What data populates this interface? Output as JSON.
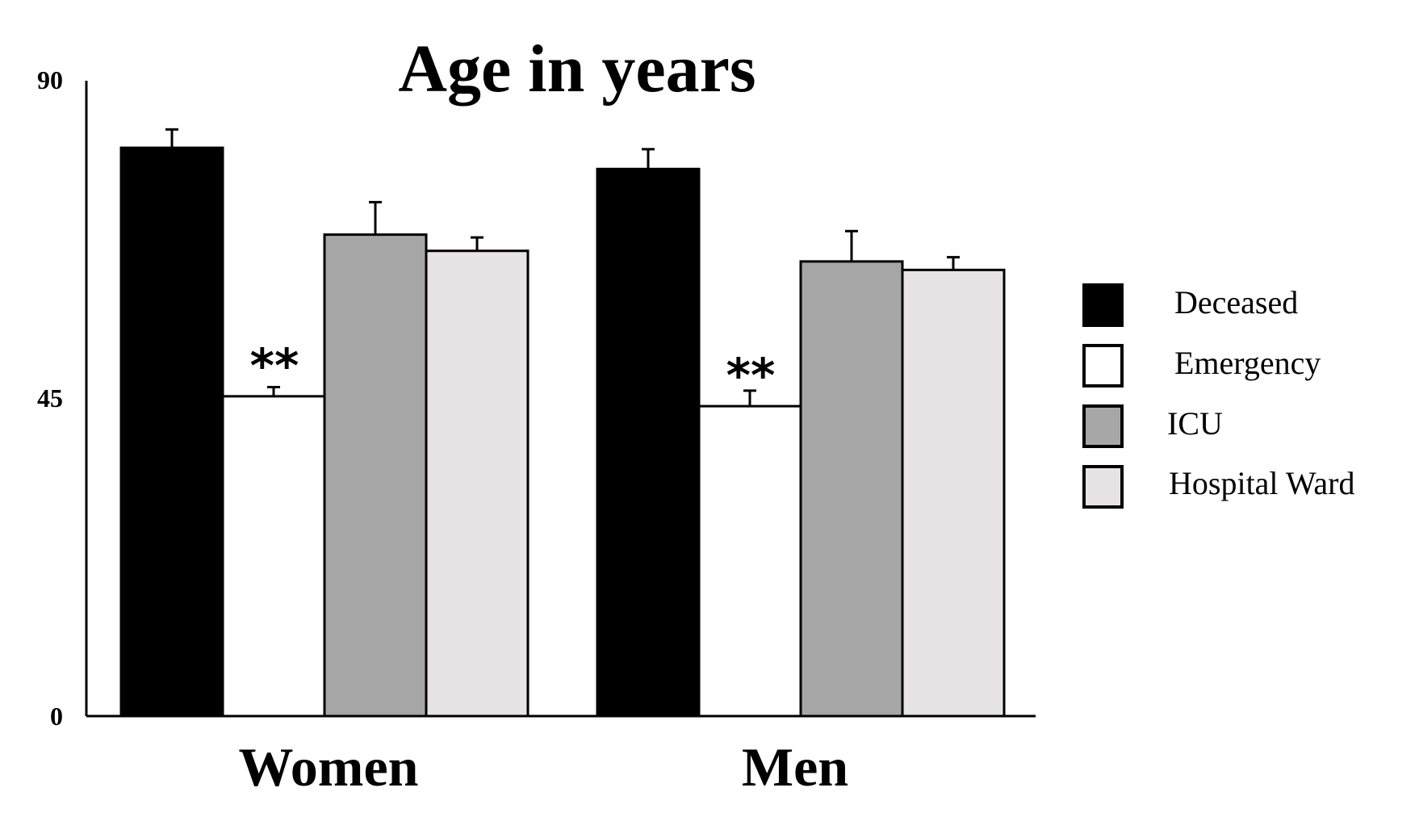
{
  "chart_data": {
    "type": "bar",
    "title": "Age in years",
    "xlabel": "",
    "ylabel": "",
    "categories": [
      "Women",
      "Men"
    ],
    "ylim": [
      0,
      90
    ],
    "yticks": [
      "0",
      "45",
      "90"
    ],
    "series": [
      {
        "name": "Deceased",
        "color": "#000000",
        "values": [
          80.5,
          77.5
        ],
        "errors": [
          2.6,
          2.8
        ]
      },
      {
        "name": "Emergency",
        "color": "#ffffff",
        "values": [
          45.3,
          43.9
        ],
        "errors": [
          1.3,
          2.2
        ]
      },
      {
        "name": "ICU",
        "color": "#a6a6a6",
        "values": [
          68.2,
          64.4
        ],
        "errors": [
          4.6,
          4.3
        ]
      },
      {
        "name": "Hospital Ward",
        "color": "#e8e4e6",
        "values": [
          65.9,
          63.2
        ],
        "errors": [
          1.9,
          1.8
        ]
      }
    ],
    "annotations": [
      {
        "text": "**",
        "category": "Women",
        "series": "Emergency"
      },
      {
        "text": "**",
        "category": "Men",
        "series": "Emergency"
      }
    ],
    "legend_position": "right",
    "grid": false
  }
}
